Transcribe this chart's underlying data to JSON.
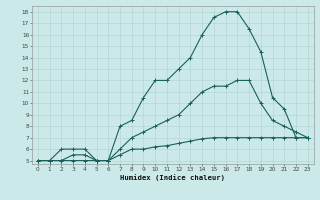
{
  "title": "",
  "xlabel": "Humidex (Indice chaleur)",
  "bg_color": "#cce9e9",
  "grid_color": "#b0d0d0",
  "line_color": "#1a5f5a",
  "xlim": [
    -0.5,
    23.5
  ],
  "ylim": [
    4.7,
    18.5
  ],
  "line1_x": [
    0,
    1,
    2,
    3,
    4,
    5,
    6,
    7,
    8,
    9,
    10,
    11,
    12,
    13,
    14,
    15,
    16,
    17,
    18,
    19,
    20,
    21,
    22,
    23
  ],
  "line1_y": [
    5,
    5,
    6,
    6,
    6,
    5,
    5,
    8,
    8.5,
    10.5,
    12,
    12,
    13,
    14,
    16,
    17.5,
    18,
    18,
    16.5,
    14.5,
    10.5,
    9.5,
    7,
    7
  ],
  "line2_x": [
    0,
    1,
    2,
    3,
    4,
    5,
    6,
    7,
    8,
    9,
    10,
    11,
    12,
    13,
    14,
    15,
    16,
    17,
    18,
    19,
    20,
    21,
    22,
    23
  ],
  "line2_y": [
    5,
    5,
    5,
    5.5,
    5.5,
    5,
    5,
    6,
    7,
    7.5,
    8,
    8.5,
    9,
    10,
    11,
    11.5,
    11.5,
    12,
    12,
    10,
    8.5,
    8,
    7.5,
    7
  ],
  "line3_x": [
    0,
    1,
    2,
    3,
    4,
    5,
    6,
    7,
    8,
    9,
    10,
    11,
    12,
    13,
    14,
    15,
    16,
    17,
    18,
    19,
    20,
    21,
    22,
    23
  ],
  "line3_y": [
    5,
    5,
    5,
    5,
    5,
    5,
    5,
    5.5,
    6,
    6,
    6.2,
    6.3,
    6.5,
    6.7,
    6.9,
    7,
    7,
    7,
    7,
    7,
    7,
    7,
    7,
    7
  ],
  "yticks": [
    5,
    6,
    7,
    8,
    9,
    10,
    11,
    12,
    13,
    14,
    15,
    16,
    17,
    18
  ],
  "xticks": [
    0,
    1,
    2,
    3,
    4,
    5,
    6,
    7,
    8,
    9,
    10,
    11,
    12,
    13,
    14,
    15,
    16,
    17,
    18,
    19,
    20,
    21,
    22,
    23
  ]
}
